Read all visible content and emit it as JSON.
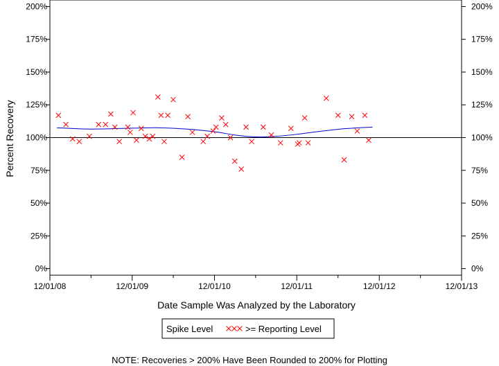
{
  "chart_data": {
    "type": "scatter",
    "xlabel": "Date Sample Was Analyzed by the Laboratory",
    "ylabel": "Percent Recovery",
    "x_ticks": [
      "12/01/08",
      "12/01/09",
      "12/01/10",
      "12/01/11",
      "12/01/12",
      "12/01/13"
    ],
    "x_tick_dates": [
      "2008-12-01",
      "2009-12-01",
      "2010-12-01",
      "2011-12-01",
      "2012-12-01",
      "2013-12-01"
    ],
    "xlim": [
      "2008-12-01",
      "2013-12-01"
    ],
    "y_ticks": [
      "0%",
      "25%",
      "50%",
      "75%",
      "100%",
      "125%",
      "150%",
      "175%",
      "200%"
    ],
    "y_tick_values": [
      0,
      25,
      50,
      75,
      100,
      125,
      150,
      175,
      200
    ],
    "ylim": [
      -5,
      205
    ],
    "reference_line": 100,
    "grid": false,
    "legend_position": "bottom-center",
    "legend": {
      "title": "Spike Level",
      "entries": [
        {
          "label": ">= Reporting Level",
          "marker": "xxx"
        }
      ]
    },
    "note": "NOTE: Recoveries > 200% Have Been Rounded to 200% for Plotting",
    "colors": {
      "markers": "#ff0000",
      "trend": "#0000cc",
      "reference": "#000000"
    },
    "series": [
      {
        "name": ">= Reporting Level",
        "marker": "x",
        "points": [
          {
            "x": "2009-01-08",
            "y": 117
          },
          {
            "x": "2009-02-10",
            "y": 110
          },
          {
            "x": "2009-03-12",
            "y": 99
          },
          {
            "x": "2009-04-10",
            "y": 97
          },
          {
            "x": "2009-05-25",
            "y": 101
          },
          {
            "x": "2009-07-05",
            "y": 110
          },
          {
            "x": "2009-08-05",
            "y": 110
          },
          {
            "x": "2009-08-28",
            "y": 118
          },
          {
            "x": "2009-09-15",
            "y": 108
          },
          {
            "x": "2009-10-05",
            "y": 97
          },
          {
            "x": "2009-11-12",
            "y": 108
          },
          {
            "x": "2009-11-22",
            "y": 104
          },
          {
            "x": "2009-12-05",
            "y": 119
          },
          {
            "x": "2009-12-20",
            "y": 98
          },
          {
            "x": "2010-01-10",
            "y": 107
          },
          {
            "x": "2010-01-28",
            "y": 101
          },
          {
            "x": "2010-02-15",
            "y": 99
          },
          {
            "x": "2010-03-02",
            "y": 101
          },
          {
            "x": "2010-03-25",
            "y": 131
          },
          {
            "x": "2010-04-08",
            "y": 117
          },
          {
            "x": "2010-04-22",
            "y": 97
          },
          {
            "x": "2010-05-08",
            "y": 117
          },
          {
            "x": "2010-06-01",
            "y": 129
          },
          {
            "x": "2010-07-10",
            "y": 85
          },
          {
            "x": "2010-08-05",
            "y": 116
          },
          {
            "x": "2010-08-25",
            "y": 104
          },
          {
            "x": "2010-10-12",
            "y": 97
          },
          {
            "x": "2010-10-30",
            "y": 101
          },
          {
            "x": "2010-11-25",
            "y": 105
          },
          {
            "x": "2010-12-08",
            "y": 108
          },
          {
            "x": "2011-01-02",
            "y": 115
          },
          {
            "x": "2011-01-20",
            "y": 110
          },
          {
            "x": "2011-02-10",
            "y": 100
          },
          {
            "x": "2011-03-01",
            "y": 82
          },
          {
            "x": "2011-03-30",
            "y": 76
          },
          {
            "x": "2011-04-20",
            "y": 108
          },
          {
            "x": "2011-05-15",
            "y": 97
          },
          {
            "x": "2011-07-05",
            "y": 108
          },
          {
            "x": "2011-08-10",
            "y": 102
          },
          {
            "x": "2011-09-20",
            "y": 96
          },
          {
            "x": "2011-11-05",
            "y": 107
          },
          {
            "x": "2011-12-05",
            "y": 95
          },
          {
            "x": "2011-12-12",
            "y": 96
          },
          {
            "x": "2012-01-05",
            "y": 115
          },
          {
            "x": "2012-01-20",
            "y": 96
          },
          {
            "x": "2012-04-10",
            "y": 130
          },
          {
            "x": "2012-06-01",
            "y": 117
          },
          {
            "x": "2012-06-28",
            "y": 83
          },
          {
            "x": "2012-08-01",
            "y": 116
          },
          {
            "x": "2012-08-25",
            "y": 105
          },
          {
            "x": "2012-09-28",
            "y": 117
          },
          {
            "x": "2012-10-15",
            "y": 98
          }
        ]
      },
      {
        "name": "trend",
        "type": "line",
        "points": [
          {
            "x": "2009-01-01",
            "y": 107.5
          },
          {
            "x": "2009-06-01",
            "y": 106.5
          },
          {
            "x": "2009-12-01",
            "y": 107.2
          },
          {
            "x": "2010-04-01",
            "y": 107.5
          },
          {
            "x": "2010-08-01",
            "y": 106.5
          },
          {
            "x": "2010-12-01",
            "y": 104.5
          },
          {
            "x": "2011-03-01",
            "y": 102
          },
          {
            "x": "2011-06-01",
            "y": 100.5
          },
          {
            "x": "2011-09-01",
            "y": 101
          },
          {
            "x": "2011-12-01",
            "y": 102.5
          },
          {
            "x": "2012-03-01",
            "y": 104.5
          },
          {
            "x": "2012-07-01",
            "y": 106.8
          },
          {
            "x": "2012-11-01",
            "y": 108
          }
        ]
      }
    ]
  }
}
